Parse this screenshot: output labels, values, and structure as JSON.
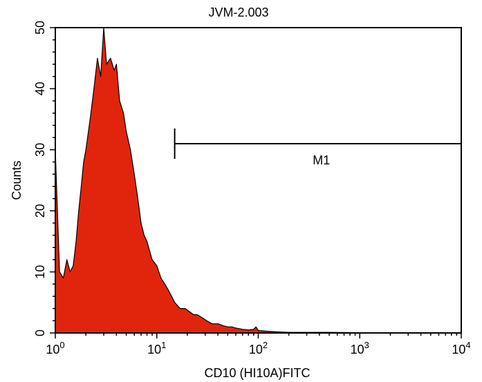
{
  "chart_data": {
    "type": "histogram",
    "title": "JVM-2.003",
    "xlabel": "CD10 (HI10A)FITC",
    "ylabel": "Counts",
    "x_scale": "log",
    "xlim": [
      1,
      10000
    ],
    "ylim": [
      0,
      50
    ],
    "y_ticks": [
      "0",
      "10",
      "20",
      "30",
      "40",
      "50"
    ],
    "x_ticks": [
      {
        "value": 1,
        "base": "10",
        "exp": "0"
      },
      {
        "value": 10,
        "base": "10",
        "exp": "1"
      },
      {
        "value": 100,
        "base": "10",
        "exp": "2"
      },
      {
        "value": 1000,
        "base": "10",
        "exp": "3"
      },
      {
        "value": 10000,
        "base": "10",
        "exp": "4"
      }
    ],
    "fill_color": "#e0250c",
    "marker": {
      "label": "M1",
      "x_start": 15,
      "x_end": 10000,
      "y": 31
    },
    "series": [
      {
        "x": [
          1.0,
          1.1,
          1.2,
          1.3,
          1.4,
          1.5,
          1.6,
          1.7,
          1.8,
          1.9,
          2.0,
          2.2,
          2.4,
          2.6,
          2.8,
          3.0,
          3.2,
          3.5,
          3.8,
          4.0,
          4.3,
          4.7,
          5.0,
          5.5,
          6.0,
          6.5,
          7.0,
          7.5,
          8.0,
          9.0,
          10,
          11,
          12,
          13,
          14,
          15,
          17,
          19,
          21,
          23,
          25,
          28,
          31,
          35,
          40,
          45,
          50,
          55,
          60,
          70,
          80,
          90,
          95,
          100,
          120,
          150,
          200,
          500,
          1000,
          10000
        ],
        "y": [
          30,
          10,
          9,
          12,
          10,
          11,
          15,
          20,
          24,
          28,
          30,
          35,
          40,
          45,
          42,
          50,
          44,
          45,
          43,
          44,
          38,
          36,
          33,
          30,
          26,
          22,
          18,
          16,
          15,
          12,
          11,
          9,
          8,
          7,
          6,
          5,
          4,
          4,
          3.5,
          3,
          3,
          2.5,
          2,
          1.5,
          1.5,
          1.2,
          1,
          1,
          0.8,
          0.6,
          0.5,
          0.6,
          1,
          0.4,
          0.3,
          0.2,
          0.1,
          0.1,
          0.05,
          0
        ]
      }
    ]
  }
}
